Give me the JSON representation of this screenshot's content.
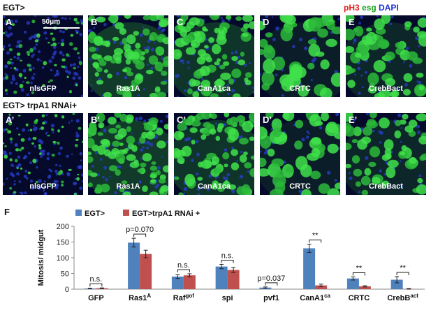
{
  "figure": {
    "row1_label": "EGT>",
    "row2_label": "EGT> trpA1 RNAi+",
    "stain_legend": {
      "ph3": "pH3",
      "esg": "esg",
      "dapi": "DAPI"
    },
    "colors": {
      "ph3": "#e0201b",
      "esg": "#17a11b",
      "dapi": "#1c2fd6"
    },
    "scale_bar": "50μm",
    "row1_panels": [
      {
        "letter": "A",
        "caption": "nlsGFP"
      },
      {
        "letter": "B",
        "caption": "Ras1A"
      },
      {
        "letter": "C",
        "caption": "CanA1ca"
      },
      {
        "letter": "D",
        "caption": "CRTC"
      },
      {
        "letter": "E",
        "caption": "CrebBact"
      }
    ],
    "row2_panels": [
      {
        "letter": "A’",
        "caption": "nlsGFP"
      },
      {
        "letter": "B’",
        "caption": "Ras1A"
      },
      {
        "letter": "C’",
        "caption": "CanA1ca"
      },
      {
        "letter": "D’",
        "caption": "CRTC"
      },
      {
        "letter": "E’",
        "caption": "CrebBact"
      }
    ],
    "panel_F_letter": "F"
  },
  "chart_data": {
    "type": "bar",
    "ylabel": "Mitosis/ midgut",
    "ylim": [
      0,
      200
    ],
    "yticks": [
      0,
      50,
      100,
      150,
      200
    ],
    "categories": [
      "GFP",
      "Ras1A",
      "Rafgof",
      "spi",
      "pvf1",
      "CanA1ca",
      "CRTC",
      "CrebBact"
    ],
    "category_superscripts": [
      "",
      "A",
      "gof",
      "",
      "",
      "ca",
      "",
      "act"
    ],
    "series": [
      {
        "name": "EGT>",
        "color": "#4f81bd",
        "values": [
          2,
          148,
          40,
          72,
          5,
          130,
          34,
          30
        ],
        "errors": [
          1,
          14,
          6,
          7,
          2,
          13,
          5,
          10
        ]
      },
      {
        "name": "EGT>trpA1 RNAi +",
        "color": "#c0504d",
        "values": [
          3,
          112,
          44,
          61,
          0,
          12,
          9,
          1
        ],
        "errors": [
          1,
          12,
          5,
          8,
          0,
          4,
          2,
          1
        ]
      }
    ],
    "annotations": [
      "n.s.",
      "p=0.070",
      "n.s.",
      "n.s.",
      "p=0.037",
      "**",
      "**",
      "**"
    ],
    "grid": false,
    "legend": "top-left"
  }
}
